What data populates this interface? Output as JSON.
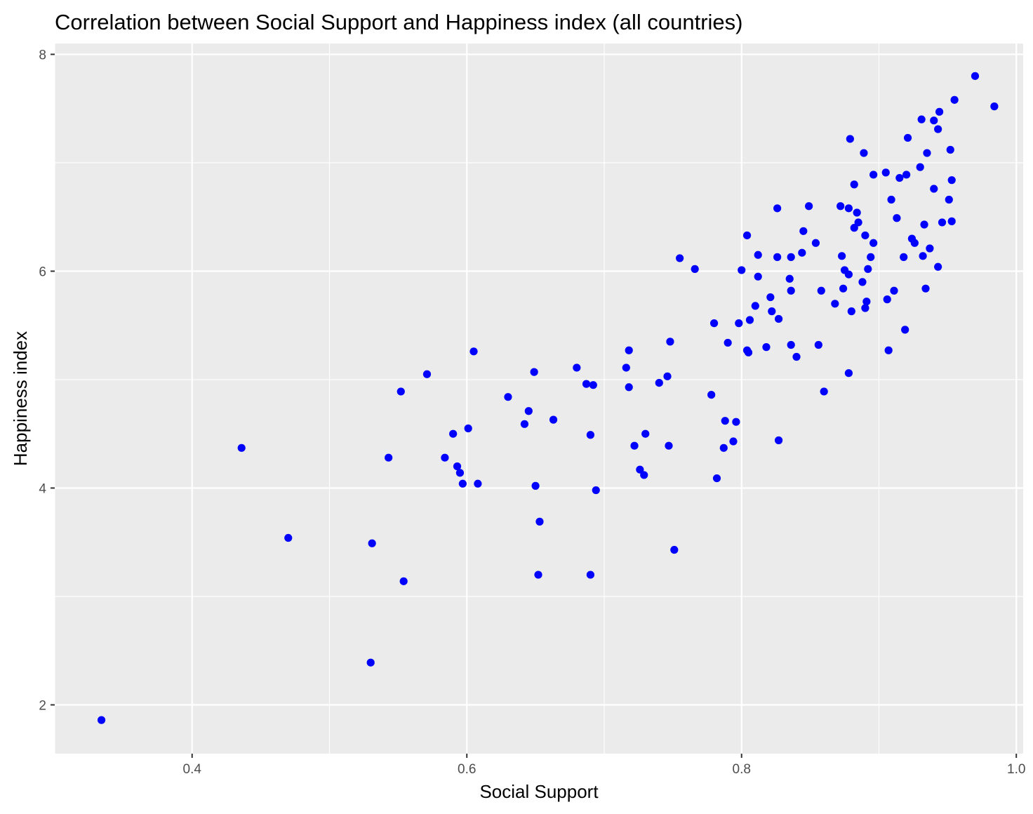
{
  "chart_data": {
    "type": "scatter",
    "title": "Correlation between Social Support and Happiness index (all countries)",
    "xlabel": "Social Support",
    "ylabel": "Happiness index",
    "xlim": [
      0.3,
      1.005
    ],
    "ylim": [
      1.55,
      8.1
    ],
    "x_ticks": [
      {
        "value": 0.4,
        "label": "0.4"
      },
      {
        "value": 0.6,
        "label": "0.6"
      },
      {
        "value": 0.8,
        "label": "0.8"
      },
      {
        "value": 1.0,
        "label": "1.0"
      }
    ],
    "x_minor_gridlines": [
      0.3,
      0.5,
      0.7,
      0.9
    ],
    "y_ticks": [
      {
        "value": 2,
        "label": "2"
      },
      {
        "value": 4,
        "label": "4"
      },
      {
        "value": 6,
        "label": "6"
      },
      {
        "value": 8,
        "label": "8"
      }
    ],
    "y_minor_gridlines": [
      3,
      5,
      7
    ],
    "grid": true,
    "colors": {
      "panel_background": "#ebebeb",
      "grid_major": "#ffffff",
      "grid_minor": "#ffffff",
      "points": "#0000ff",
      "tick_marks": "#333333"
    },
    "series": [
      {
        "points": [
          [
            0.334,
            1.86
          ],
          [
            0.436,
            4.37
          ],
          [
            0.47,
            3.54
          ],
          [
            0.53,
            2.39
          ],
          [
            0.531,
            3.49
          ],
          [
            0.543,
            4.28
          ],
          [
            0.552,
            4.89
          ],
          [
            0.554,
            3.14
          ],
          [
            0.571,
            5.05
          ],
          [
            0.584,
            4.28
          ],
          [
            0.59,
            4.5
          ],
          [
            0.593,
            4.2
          ],
          [
            0.595,
            4.14
          ],
          [
            0.597,
            4.04
          ],
          [
            0.601,
            4.55
          ],
          [
            0.605,
            5.26
          ],
          [
            0.608,
            4.04
          ],
          [
            0.63,
            4.84
          ],
          [
            0.642,
            4.59
          ],
          [
            0.645,
            4.71
          ],
          [
            0.649,
            5.07
          ],
          [
            0.65,
            4.02
          ],
          [
            0.652,
            3.2
          ],
          [
            0.653,
            3.69
          ],
          [
            0.663,
            4.63
          ],
          [
            0.68,
            5.11
          ],
          [
            0.687,
            4.96
          ],
          [
            0.69,
            3.2
          ],
          [
            0.69,
            4.49
          ],
          [
            0.692,
            4.95
          ],
          [
            0.694,
            3.98
          ],
          [
            0.716,
            5.11
          ],
          [
            0.718,
            4.93
          ],
          [
            0.718,
            5.27
          ],
          [
            0.722,
            4.39
          ],
          [
            0.726,
            4.17
          ],
          [
            0.729,
            4.12
          ],
          [
            0.73,
            4.5
          ],
          [
            0.74,
            4.97
          ],
          [
            0.746,
            5.03
          ],
          [
            0.747,
            4.39
          ],
          [
            0.748,
            5.35
          ],
          [
            0.751,
            3.43
          ],
          [
            0.755,
            6.12
          ],
          [
            0.766,
            6.02
          ],
          [
            0.778,
            4.86
          ],
          [
            0.78,
            5.52
          ],
          [
            0.782,
            4.09
          ],
          [
            0.787,
            4.37
          ],
          [
            0.788,
            4.62
          ],
          [
            0.79,
            5.34
          ],
          [
            0.794,
            4.43
          ],
          [
            0.796,
            4.61
          ],
          [
            0.798,
            5.52
          ],
          [
            0.8,
            6.01
          ],
          [
            0.804,
            6.33
          ],
          [
            0.804,
            5.27
          ],
          [
            0.805,
            5.25
          ],
          [
            0.806,
            5.55
          ],
          [
            0.81,
            5.68
          ],
          [
            0.812,
            5.95
          ],
          [
            0.812,
            6.15
          ],
          [
            0.818,
            5.3
          ],
          [
            0.821,
            5.76
          ],
          [
            0.822,
            5.63
          ],
          [
            0.826,
            6.58
          ],
          [
            0.826,
            6.13
          ],
          [
            0.827,
            5.56
          ],
          [
            0.827,
            4.44
          ],
          [
            0.835,
            5.93
          ],
          [
            0.836,
            6.13
          ],
          [
            0.836,
            5.82
          ],
          [
            0.836,
            5.32
          ],
          [
            0.84,
            5.21
          ],
          [
            0.844,
            6.17
          ],
          [
            0.845,
            6.37
          ],
          [
            0.849,
            6.6
          ],
          [
            0.854,
            6.26
          ],
          [
            0.856,
            5.32
          ],
          [
            0.858,
            5.82
          ],
          [
            0.86,
            4.89
          ],
          [
            0.868,
            5.7
          ],
          [
            0.872,
            6.6
          ],
          [
            0.873,
            6.14
          ],
          [
            0.874,
            5.84
          ],
          [
            0.875,
            6.01
          ],
          [
            0.878,
            5.97
          ],
          [
            0.878,
            5.06
          ],
          [
            0.878,
            6.58
          ],
          [
            0.879,
            7.22
          ],
          [
            0.88,
            5.63
          ],
          [
            0.882,
            6.4
          ],
          [
            0.882,
            6.8
          ],
          [
            0.884,
            6.54
          ],
          [
            0.885,
            6.45
          ],
          [
            0.888,
            5.9
          ],
          [
            0.889,
            7.09
          ],
          [
            0.89,
            5.66
          ],
          [
            0.89,
            6.33
          ],
          [
            0.891,
            5.72
          ],
          [
            0.892,
            6.02
          ],
          [
            0.894,
            6.13
          ],
          [
            0.896,
            6.26
          ],
          [
            0.896,
            6.89
          ],
          [
            0.905,
            6.91
          ],
          [
            0.906,
            5.74
          ],
          [
            0.907,
            5.27
          ],
          [
            0.909,
            6.66
          ],
          [
            0.911,
            5.82
          ],
          [
            0.913,
            6.49
          ],
          [
            0.915,
            6.86
          ],
          [
            0.918,
            6.13
          ],
          [
            0.919,
            5.46
          ],
          [
            0.92,
            6.89
          ],
          [
            0.921,
            7.23
          ],
          [
            0.924,
            6.3
          ],
          [
            0.926,
            6.26
          ],
          [
            0.93,
            6.96
          ],
          [
            0.931,
            7.4
          ],
          [
            0.932,
            6.14
          ],
          [
            0.933,
            6.43
          ],
          [
            0.934,
            5.84
          ],
          [
            0.935,
            7.09
          ],
          [
            0.937,
            6.21
          ],
          [
            0.94,
            7.39
          ],
          [
            0.94,
            6.76
          ],
          [
            0.943,
            6.04
          ],
          [
            0.943,
            7.31
          ],
          [
            0.944,
            7.47
          ],
          [
            0.946,
            6.45
          ],
          [
            0.951,
            6.66
          ],
          [
            0.952,
            7.12
          ],
          [
            0.953,
            6.46
          ],
          [
            0.953,
            6.84
          ],
          [
            0.955,
            7.58
          ],
          [
            0.97,
            7.8
          ],
          [
            0.984,
            7.52
          ]
        ]
      }
    ]
  }
}
